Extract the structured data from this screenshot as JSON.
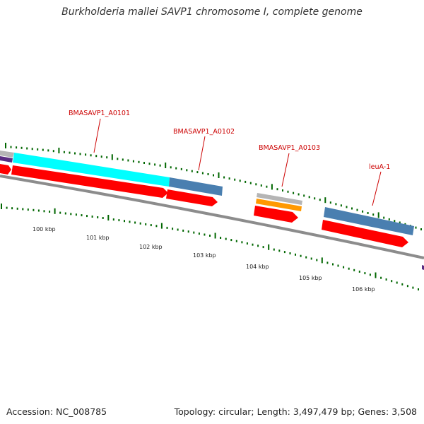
{
  "title": "Burkholderia mallei SAVP1 chromosome I, complete genome",
  "footer": {
    "accession": "Accession: NC_008785",
    "summary": "Topology: circular; Length: 3,497,479 bp; Genes: 3,508"
  },
  "colors": {
    "backbone": "#8c8c8c",
    "cds": "#ff0000",
    "gene_blue": "#4a7fb0",
    "gene_cyan": "#00ffff",
    "gene_orange": "#ff9900",
    "gene_gray": "#b5b5b5",
    "gene_purple": "#5a2d82",
    "tick": "#006600",
    "label": "#cc0000"
  },
  "scale_labels": [
    "100 kbp",
    "101 kbp",
    "102 kbp",
    "103 kbp",
    "104 kbp",
    "105 kbp",
    "106 kbp"
  ],
  "gene_labels": [
    "BMASAVP1_A0101",
    "BMASAVP1_A0102",
    "BMASAVP1_A0103",
    "leuA-1"
  ]
}
